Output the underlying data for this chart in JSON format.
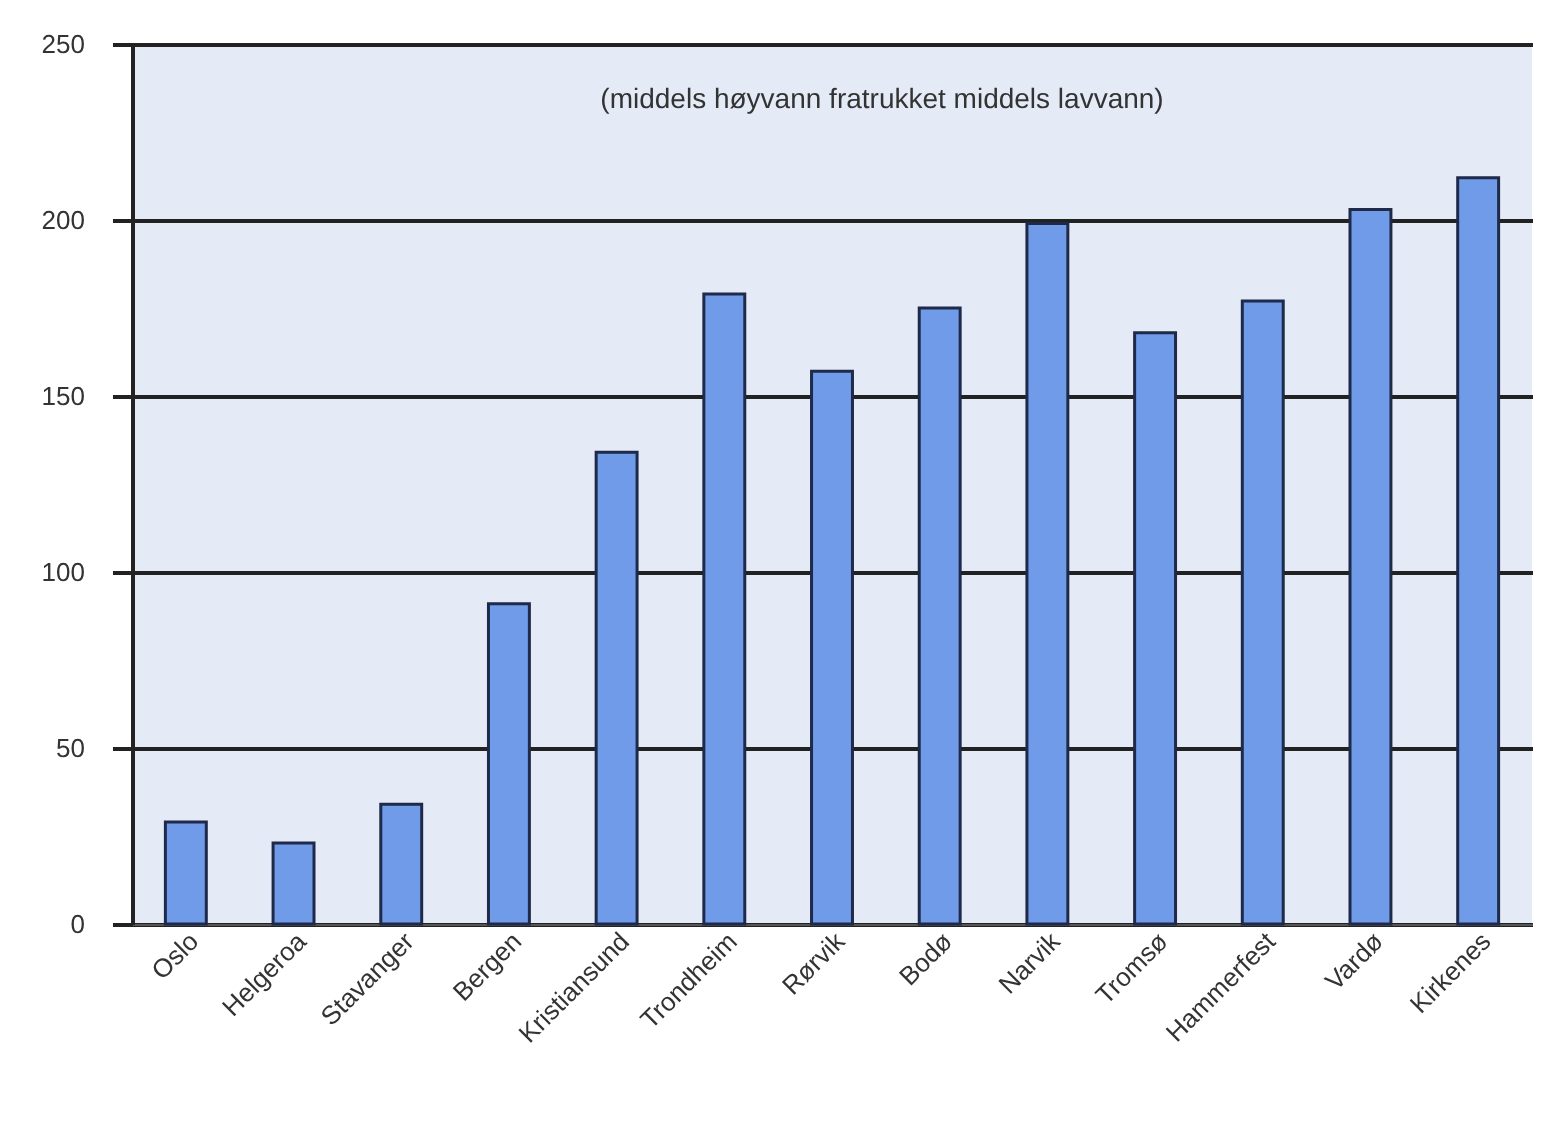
{
  "chart_data": {
    "type": "bar",
    "annotations": [
      "(middels høyvann  fratrukket middels lavvann)"
    ],
    "categories": [
      "Oslo",
      "Helgeroa",
      "Stavanger",
      "Bergen",
      "Kristiansund",
      "Trondheim",
      "Rørvik",
      "Bodø",
      "Narvik",
      "Tromsø",
      "Hammerfest",
      "Vardø",
      "Kirkenes"
    ],
    "values": [
      29,
      23,
      34,
      91,
      134,
      179,
      157,
      175,
      199,
      168,
      177,
      203,
      212
    ],
    "color": "#6f9be8",
    "ylim": [
      0,
      250
    ],
    "yticks": [
      0,
      50,
      100,
      150,
      200,
      250
    ],
    "grid": "y"
  }
}
